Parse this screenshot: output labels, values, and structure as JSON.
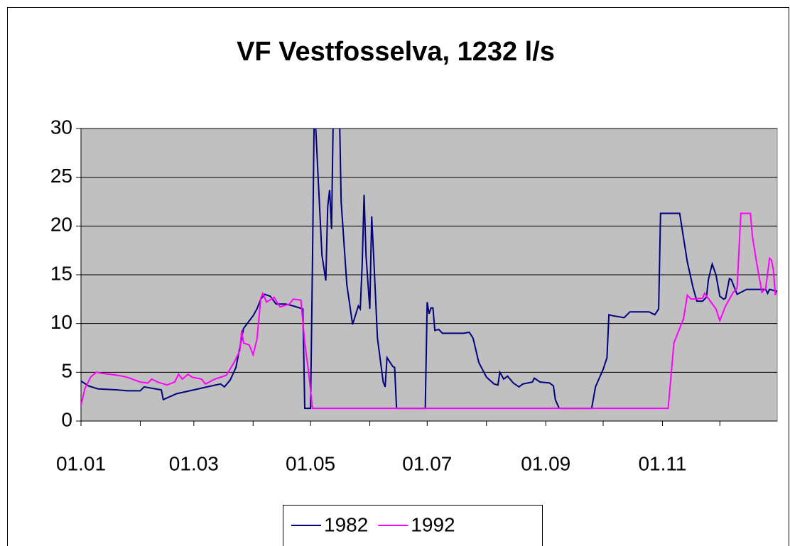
{
  "chart_data": {
    "type": "line",
    "title": "VF Vestfosselva, 1232 l/s",
    "xlim": [
      "01.01",
      "31.12"
    ],
    "xticks": [
      "01.01",
      "01.03",
      "01.05",
      "01.07",
      "01.09",
      "01.11"
    ],
    "xminorticks": [
      "01.02",
      "01.04",
      "01.06",
      "01.08",
      "01.10",
      "01.12"
    ],
    "ylim": [
      0,
      30
    ],
    "yticks": [
      0,
      5,
      10,
      15,
      20,
      25,
      30
    ],
    "grid": true,
    "legend": "bottom",
    "series": [
      {
        "name": "1982",
        "color": "#000080",
        "x": [
          "01.01",
          "05.01",
          "10.01",
          "20.01",
          "25.01",
          "01.02",
          "03.02",
          "12.02",
          "13.02",
          "20.02",
          "01.03",
          "10.03",
          "15.03",
          "17.03",
          "20.03",
          "23.03",
          "27.03",
          "01.04",
          "03.04",
          "05.04",
          "07.04",
          "10.04",
          "13.04",
          "18.04",
          "22.04",
          "27.04",
          "28.04",
          "01.05",
          "02.05",
          "03.05",
          "05.05",
          "07.05",
          "09.05",
          "10.05",
          "11.05",
          "12.05",
          "13.05",
          "16.05",
          "17.05",
          "20.05",
          "23.05",
          "26.05",
          "27.05",
          "28.05",
          "29.05",
          "30.05",
          "01.06",
          "02.06",
          "03.06",
          "05.06",
          "08.06",
          "09.06",
          "10.06",
          "13.06",
          "14.06",
          "15.06",
          "30.06",
          "01.07",
          "02.07",
          "03.07",
          "04.07",
          "05.07",
          "07.07",
          "09.07",
          "20.07",
          "23.07",
          "25.07",
          "28.07",
          "01.08",
          "05.08",
          "07.08",
          "08.08",
          "10.08",
          "12.08",
          "15.08",
          "18.08",
          "20.08",
          "25.08",
          "26.08",
          "29.08",
          "03.09",
          "05.09",
          "06.09",
          "08.09",
          "25.09",
          "27.09",
          "01.10",
          "03.10",
          "04.10",
          "06.10",
          "12.10",
          "15.10",
          "25.10",
          "28.10",
          "30.10",
          "31.10",
          "10.11",
          "14.11",
          "17.11",
          "19.11",
          "22.11",
          "24.11",
          "25.11",
          "27.11",
          "29.11",
          "01.12",
          "03.12",
          "04.12",
          "06.12",
          "07.12",
          "10.12",
          "15.12",
          "25.12",
          "26.12",
          "27.12",
          "31.12"
        ],
        "values": [
          4.1,
          3.6,
          3.3,
          3.2,
          3.1,
          3.1,
          3.5,
          3.2,
          2.2,
          2.8,
          3.2,
          3.6,
          3.8,
          3.5,
          4.2,
          5.5,
          9.5,
          10.8,
          11.5,
          12.5,
          13.0,
          12.8,
          12.0,
          12.0,
          11.8,
          11.5,
          1.3,
          1.3,
          16,
          33,
          25,
          17,
          14.4,
          22,
          23.7,
          19.7,
          33,
          33,
          22.5,
          14,
          9.9,
          11.8,
          11.5,
          16,
          23.2,
          17,
          11.5,
          21,
          17,
          8.5,
          4,
          3.5,
          6.5,
          5.6,
          5.5,
          1.3,
          1.3,
          12.2,
          11.0,
          11.6,
          11.6,
          9.3,
          9.4,
          9.0,
          9.0,
          9.1,
          8.5,
          6,
          4.5,
          3.8,
          3.7,
          5.0,
          4.3,
          4.6,
          3.9,
          3.5,
          3.8,
          4.0,
          4.4,
          4.0,
          3.9,
          3.6,
          2.2,
          1.3,
          1.3,
          3.5,
          5.3,
          6.5,
          10.9,
          10.8,
          10.6,
          11.2,
          11.2,
          10.9,
          11.5,
          21.3,
          21.3,
          16.3,
          13.7,
          12.3,
          12.3,
          12.7,
          14.5,
          16.1,
          15.0,
          12.8,
          12.5,
          12.6,
          14.6,
          14.5,
          13.0,
          13.5,
          13.5,
          13.1,
          13.5,
          13.3
        ]
      },
      {
        "name": "1992",
        "color": "#ff00ff",
        "x": [
          "01.01",
          "03.01",
          "06.01",
          "09.01",
          "12.01",
          "20.01",
          "25.01",
          "01.02",
          "05.02",
          "07.02",
          "10.02",
          "15.02",
          "19.02",
          "21.02",
          "23.02",
          "26.02",
          "28.02",
          "05.03",
          "07.03",
          "12.03",
          "18.03",
          "22.03",
          "25.03",
          "26.03",
          "27.03",
          "30.03",
          "01.04",
          "03.04",
          "05.04",
          "06.04",
          "08.04",
          "12.04",
          "15.04",
          "20.04",
          "22.04",
          "26.04",
          "28.04",
          "30.04",
          "02.05",
          "04.11",
          "07.11",
          "10.11",
          "12.11",
          "14.11",
          "16.11",
          "22.11",
          "23.11",
          "26.11",
          "29.11",
          "01.12",
          "04.12",
          "08.12",
          "10.12",
          "12.12",
          "17.12",
          "18.12",
          "20.12",
          "23.12",
          "25.12",
          "27.12",
          "28.12",
          "29.12",
          "30.12",
          "31.12"
        ],
        "values": [
          1.6,
          3.3,
          4.5,
          5.0,
          4.9,
          4.7,
          4.5,
          4.0,
          3.9,
          4.3,
          4.0,
          3.7,
          4.0,
          4.8,
          4.3,
          4.8,
          4.5,
          4.3,
          3.8,
          4.3,
          4.7,
          6.0,
          7.2,
          9.3,
          8.0,
          7.8,
          6.8,
          8.4,
          12.6,
          13.1,
          12.2,
          12.7,
          11.7,
          12.0,
          12.5,
          12.4,
          8,
          5,
          1.3,
          1.3,
          8.0,
          9.5,
          10.5,
          12.9,
          12.5,
          12.6,
          13.1,
          12.3,
          11.5,
          10.3,
          11.8,
          13.2,
          13.6,
          21.3,
          21.3,
          19.0,
          16.5,
          13.2,
          13.6,
          16.7,
          16.5,
          15.5,
          13.0,
          13.2
        ]
      }
    ]
  }
}
